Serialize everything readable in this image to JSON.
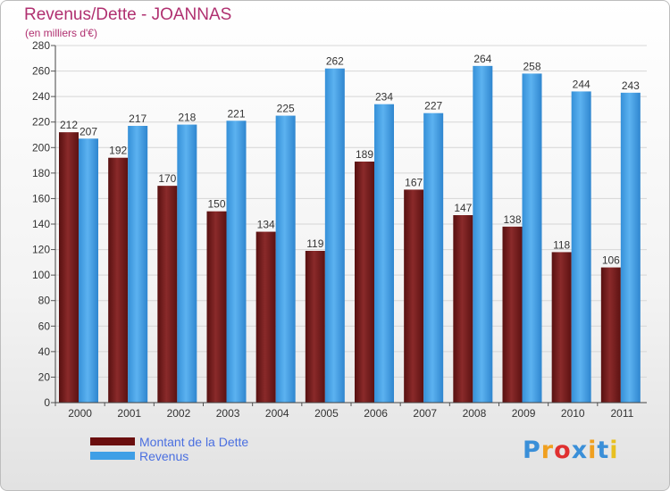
{
  "header": {
    "title": "Revenus/Dette - JOANNAS",
    "subtitle": "(en milliers d'€)"
  },
  "chart_data": {
    "type": "bar",
    "title": "Revenus/Dette - JOANNAS",
    "subtitle": "(en milliers d'€)",
    "categories": [
      "2000",
      "2001",
      "2002",
      "2003",
      "2004",
      "2005",
      "2006",
      "2007",
      "2008",
      "2009",
      "2010",
      "2011"
    ],
    "series": [
      {
        "name": "Montant de la Dette",
        "values": [
          212,
          192,
          170,
          150,
          134,
          119,
          189,
          167,
          147,
          138,
          118,
          106
        ],
        "color": "#7a1a1a"
      },
      {
        "name": "Revenus",
        "values": [
          207,
          217,
          218,
          221,
          225,
          262,
          234,
          227,
          264,
          258,
          244,
          243
        ],
        "color": "#3f9fe6"
      }
    ],
    "ylim": [
      0,
      280
    ],
    "yticks": [
      0,
      20,
      40,
      60,
      80,
      100,
      120,
      140,
      160,
      180,
      200,
      220,
      240,
      260,
      280
    ],
    "grid": true,
    "legend_position": "bottom-left"
  },
  "legend": {
    "items": [
      {
        "label": "Montant de la Dette",
        "color": "#6b0f0f"
      },
      {
        "label": "Revenus",
        "color": "#3f9fe6"
      }
    ]
  },
  "logo": {
    "text": "Proxiti",
    "letter_colors": [
      "#3a8fd8",
      "#f0a020",
      "#e03030",
      "#3a8fd8",
      "#f0a020",
      "#3a8fd8",
      "#e8c020"
    ]
  }
}
